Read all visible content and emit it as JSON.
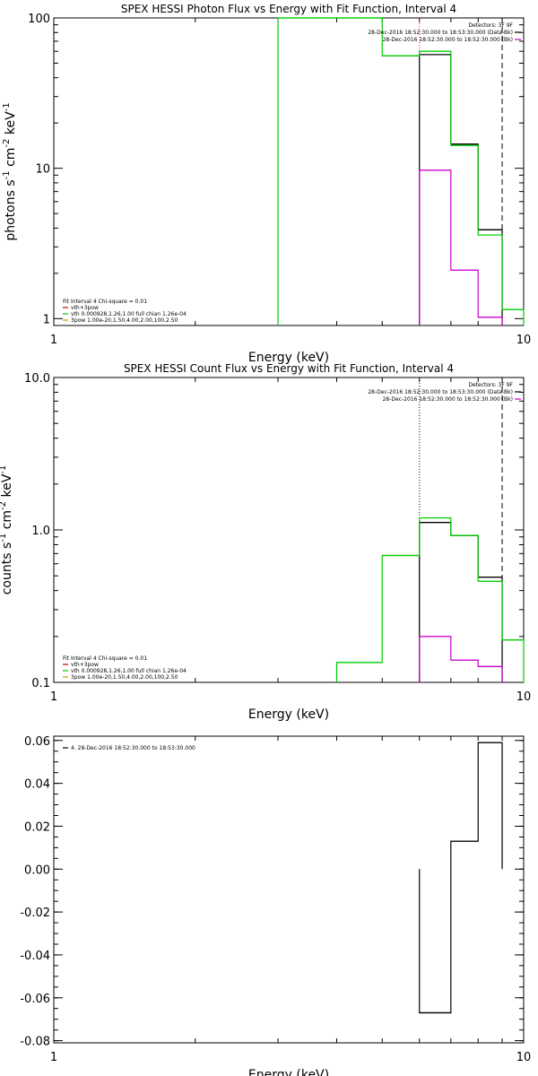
{
  "chart_data": [
    {
      "type": "line",
      "title": "SPEX HESSI Photon Flux vs Energy with Fit Function, Interval 4",
      "xlabel": "Energy (keV)",
      "ylabel_base": "photons s",
      "ylabel_units": [
        "-1",
        " cm",
        "-2",
        " keV",
        "-1"
      ],
      "xscale": "log",
      "yscale": "log",
      "xlim": [
        1,
        10
      ],
      "ylim": [
        0.9,
        100
      ],
      "x_ticks": [
        {
          "v": 1,
          "label": "1"
        },
        {
          "v": 10,
          "label": "10"
        }
      ],
      "y_ticks": [
        {
          "v": 1,
          "label": "1"
        },
        {
          "v": 10,
          "label": "10"
        },
        {
          "v": 100,
          "label": "100"
        }
      ],
      "legend_right": {
        "position": "top-right",
        "entries": [
          {
            "text": "Detectors: 3F 9F",
            "color": ""
          },
          {
            "text": "28-Dec-2016 18:52:30.000 to 18:53:30.000 (Data-Bk)",
            "color": "#000000"
          },
          {
            "text": "28-Dec-2016 18:52:30.000 to 18:52:30.000 (Bk)",
            "color": "#cc00cc"
          }
        ]
      },
      "legend_left": {
        "position": "bottom-left",
        "entries": [
          {
            "text": "Fit Interval 4   Chi-square = 0.01",
            "color": ""
          },
          {
            "text": "vth+3pow",
            "color": "#cc0000"
          },
          {
            "text": "vth 0.000928,1.26,1.00  full chian 1.26e-04",
            "color": "#00cc00"
          },
          {
            "text": "3pow 1.00e-20,1.50,4.00,2.00,100,2.50",
            "color": "#cc9900"
          }
        ]
      },
      "vlines": [
        {
          "x": 6.0,
          "style": "dotted",
          "color": "#cc00cc"
        },
        {
          "x": 9.0,
          "style": "dashed",
          "color": "#000000"
        }
      ],
      "series": [
        {
          "name": "Data-Bk",
          "color": "#000000",
          "bins": [
            [
              6,
              7,
              57
            ],
            [
              7,
              8,
              14.5
            ],
            [
              8,
              9,
              3.9
            ]
          ]
        },
        {
          "name": "Bk",
          "color": "#cc00cc",
          "bins": [
            [
              6,
              7,
              9.7
            ],
            [
              7,
              8,
              2.1
            ],
            [
              8,
              9,
              1.02
            ]
          ]
        },
        {
          "name": "vth",
          "color": "#00cc00",
          "bins": [
            [
              3.0,
              5.0,
              100
            ],
            [
              5.0,
              6.0,
              56
            ],
            [
              6,
              7,
              60
            ],
            [
              7,
              8,
              14.2
            ],
            [
              8,
              9,
              3.6
            ],
            [
              9,
              10,
              1.15
            ]
          ]
        }
      ]
    },
    {
      "type": "line",
      "title": "SPEX HESSI Count Flux vs Energy with Fit Function, Interval 4",
      "xlabel": "Energy (keV)",
      "ylabel_base": "counts s",
      "ylabel_units": [
        "-1",
        " cm",
        "-2",
        " keV",
        "-1"
      ],
      "xscale": "log",
      "yscale": "log",
      "xlim": [
        1,
        10
      ],
      "ylim": [
        0.1,
        10
      ],
      "x_ticks": [
        {
          "v": 1,
          "label": "1"
        },
        {
          "v": 10,
          "label": "10"
        }
      ],
      "y_ticks": [
        {
          "v": 0.1,
          "label": "0.1"
        },
        {
          "v": 1,
          "label": "1.0"
        },
        {
          "v": 10,
          "label": "10.0"
        }
      ],
      "legend_right": {
        "position": "top-right",
        "entries": [
          {
            "text": "Detectors: 3F 9F",
            "color": ""
          },
          {
            "text": "28-Dec-2016 18:52:30.000 to 18:53:30.000 (Data-Bk)",
            "color": "#000000"
          },
          {
            "text": "28-Dec-2016 18:52:30.000 to 18:52:30.000 (Bk)",
            "color": "#cc00cc"
          }
        ]
      },
      "legend_left": {
        "position": "bottom-left",
        "entries": [
          {
            "text": "Fit Interval 4   Chi-square = 0.01",
            "color": ""
          },
          {
            "text": "vth+3pow",
            "color": "#cc0000"
          },
          {
            "text": "vth 0.000928,1.26,1.00  full chian 1.26e-04",
            "color": "#00cc00"
          },
          {
            "text": "3pow 1.00e-20,1.50,4.00,2.00,100,2.50",
            "color": "#cc9900"
          }
        ]
      },
      "vlines": [
        {
          "x": 6.0,
          "style": "dotted",
          "color": "#000000"
        },
        {
          "x": 9.0,
          "style": "dashed",
          "color": "#000000"
        }
      ],
      "series": [
        {
          "name": "Data-Bk",
          "color": "#000000",
          "bins": [
            [
              6,
              7,
              1.12
            ],
            [
              7,
              8,
              0.92
            ],
            [
              8,
              9,
              0.49
            ]
          ]
        },
        {
          "name": "Bk",
          "color": "#cc00cc",
          "bins": [
            [
              6,
              7,
              0.2
            ],
            [
              7,
              8,
              0.14
            ],
            [
              8,
              9,
              0.127
            ]
          ]
        },
        {
          "name": "vth",
          "color": "#00cc00",
          "bins": [
            [
              4.0,
              5.0,
              0.135
            ],
            [
              5.0,
              6.0,
              0.68
            ],
            [
              6,
              7,
              1.2
            ],
            [
              7,
              8,
              0.92
            ],
            [
              8,
              9,
              0.46
            ],
            [
              9,
              10,
              0.19
            ]
          ]
        }
      ]
    },
    {
      "type": "line",
      "title": "",
      "xlabel": "Energy (keV)",
      "xscale": "log",
      "yscale": "linear",
      "xlim": [
        1,
        10
      ],
      "ylim": [
        -0.081,
        0.062
      ],
      "x_ticks": [
        {
          "v": 1,
          "label": "1"
        },
        {
          "v": 10,
          "label": "10"
        }
      ],
      "y_ticks": [
        {
          "v": 0.06,
          "label": "0.06"
        },
        {
          "v": 0.04,
          "label": "0.04"
        },
        {
          "v": 0.02,
          "label": "0.02"
        },
        {
          "v": 0.0,
          "label": "0.00"
        },
        {
          "v": -0.02,
          "label": "-0.02"
        },
        {
          "v": -0.04,
          "label": "-0.04"
        },
        {
          "v": -0.06,
          "label": "-0.06"
        },
        {
          "v": -0.08,
          "label": "-0.08"
        }
      ],
      "legend_left": {
        "position": "top-left",
        "entries": [
          {
            "text": "4. 28-Dec-2016 18:52:30.000 to 18:53:30.000",
            "color": "#000000"
          }
        ]
      },
      "series": [
        {
          "name": "",
          "color": "#000000",
          "bins": [
            [
              6,
              7,
              -0.067
            ],
            [
              7,
              8,
              0.013
            ],
            [
              8,
              9,
              0.059
            ]
          ]
        }
      ]
    }
  ]
}
